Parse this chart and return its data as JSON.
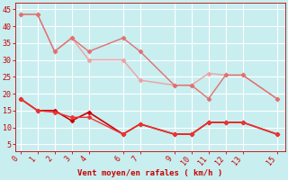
{
  "title": "",
  "xlabel": "Vent moyen/en rafales ( km/h )",
  "ylabel": "",
  "bg_color": "#c8eef0",
  "grid_color": "#ffffff",
  "xlim": [
    -0.3,
    15.5
  ],
  "ylim": [
    3,
    47
  ],
  "yticks": [
    5,
    10,
    15,
    20,
    25,
    30,
    35,
    40,
    45
  ],
  "xticks": [
    0,
    1,
    2,
    3,
    4,
    6,
    7,
    9,
    10,
    11,
    12,
    13,
    15
  ],
  "line1_x": [
    0,
    1,
    2,
    3,
    4,
    6,
    7,
    9,
    10,
    11,
    12,
    13,
    15
  ],
  "line1_y": [
    43.5,
    43.5,
    32.5,
    36.5,
    30.0,
    30.0,
    24.0,
    22.5,
    22.5,
    26.0,
    25.5,
    25.5,
    18.5
  ],
  "line1_color": "#f0a0a0",
  "line1_lw": 1.0,
  "line2_x": [
    0,
    1,
    2,
    3,
    4,
    6,
    7,
    9,
    10,
    11,
    12,
    13,
    15
  ],
  "line2_y": [
    43.5,
    43.5,
    32.5,
    36.5,
    32.5,
    36.5,
    32.5,
    22.5,
    22.5,
    18.5,
    25.5,
    25.5,
    18.5
  ],
  "line2_color": "#e07070",
  "line2_lw": 1.0,
  "line3_x": [
    0,
    1,
    2,
    3,
    4,
    6,
    7,
    9,
    10,
    11,
    12,
    13,
    15
  ],
  "line3_y": [
    18.5,
    15.0,
    15.0,
    12.0,
    14.5,
    8.0,
    11.0,
    8.0,
    8.0,
    11.5,
    11.5,
    11.5,
    8.0
  ],
  "line3_color": "#cc0000",
  "line3_lw": 1.2,
  "line4_x": [
    0,
    1,
    2,
    3,
    4,
    6,
    7,
    9,
    10,
    11,
    12,
    13,
    15
  ],
  "line4_y": [
    18.5,
    15.0,
    14.5,
    13.0,
    13.0,
    8.0,
    11.0,
    8.0,
    8.0,
    11.5,
    11.5,
    11.5,
    8.0
  ],
  "line4_color": "#ee3333",
  "line4_lw": 1.0,
  "marker": "D",
  "marker_size": 2.5,
  "xlabel_color": "#cc0000",
  "xlabel_fontsize": 6.5,
  "tick_color": "#cc0000",
  "tick_fontsize": 6,
  "spine_color": "#cc0000"
}
